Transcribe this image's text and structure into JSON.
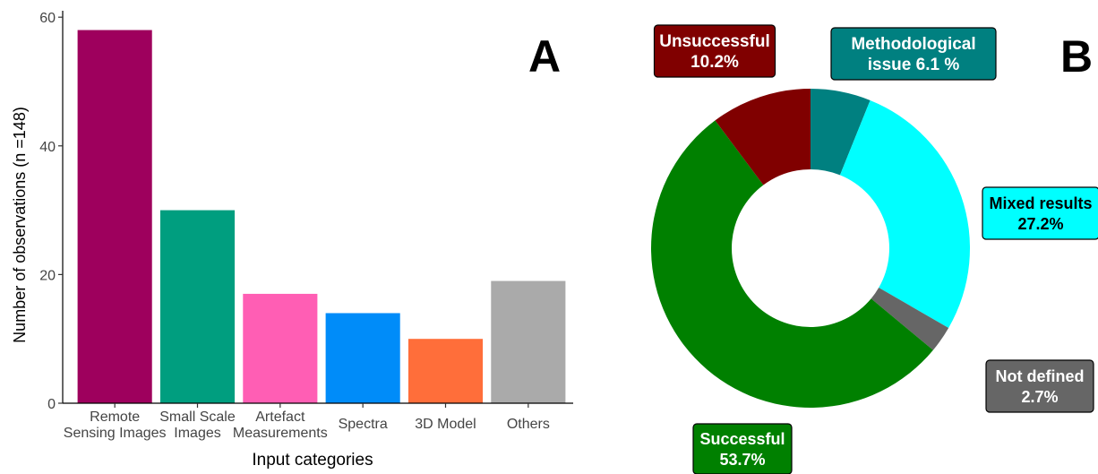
{
  "panels": {
    "a_letter": "A",
    "b_letter": "B"
  },
  "chart_data": [
    {
      "type": "bar",
      "panel": "A",
      "xlabel": "Input categories",
      "ylabel": "Number of observations (n =148)",
      "ylim": [
        0,
        61
      ],
      "yticks": [
        0,
        20,
        40,
        60
      ],
      "grid": false,
      "categories": [
        [
          "Remote",
          "Sensing Images"
        ],
        [
          "Small Scale",
          "Images"
        ],
        [
          "Artefact",
          "Measurements"
        ],
        [
          "Spectra"
        ],
        [
          "3D Model"
        ],
        [
          "Others"
        ]
      ],
      "values": [
        58,
        30,
        17,
        14,
        10,
        19
      ],
      "colors": [
        "#9E005D",
        "#009E7F",
        "#FF5EB4",
        "#008CF9",
        "#FF6E3A",
        "#AAAAAA"
      ]
    },
    {
      "type": "pie",
      "panel": "B",
      "donut": true,
      "slices": [
        {
          "label": [
            "Methodological",
            "issue 6.1 %"
          ],
          "value": 6.1,
          "color": "#008080",
          "text_color": "#ffffff"
        },
        {
          "label": [
            "Mixed results",
            "27.2%"
          ],
          "value": 27.2,
          "color": "#00FFFF",
          "text_color": "#000000"
        },
        {
          "label": [
            "Not defined",
            "2.7%"
          ],
          "value": 2.7,
          "color": "#666666",
          "text_color": "#ffffff"
        },
        {
          "label": [
            "Successful",
            "53.7%"
          ],
          "value": 53.7,
          "color": "#008000",
          "text_color": "#ffffff"
        },
        {
          "label": [
            "Unsuccessful",
            "10.2%"
          ],
          "value": 10.2,
          "color": "#800000",
          "text_color": "#ffffff"
        }
      ]
    }
  ]
}
